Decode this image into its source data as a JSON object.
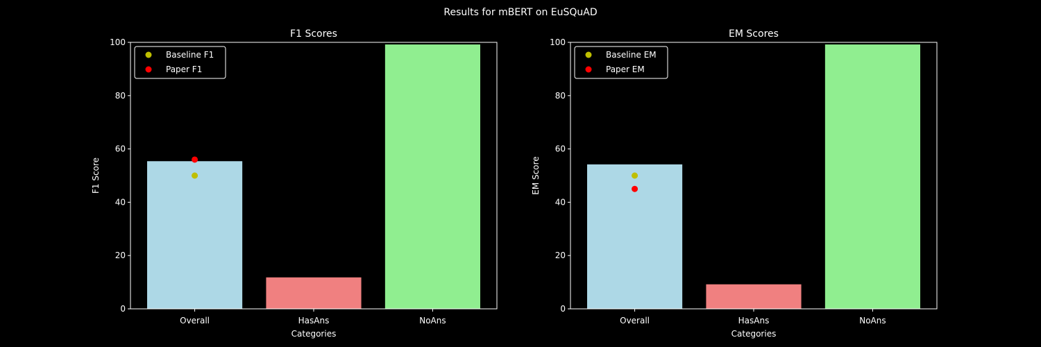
{
  "figure": {
    "suptitle": "Results for mBERT on EuSQuAD",
    "background": "#000000",
    "foreground": "#ffffff"
  },
  "chart_data": [
    {
      "type": "bar",
      "title": "F1 Scores",
      "xlabel": "Categories",
      "ylabel": "F1 Score",
      "ylim": [
        0,
        100
      ],
      "yticks": [
        0,
        20,
        40,
        60,
        80,
        100
      ],
      "grid": false,
      "legend_placement": "top-left",
      "categories": [
        "Overall",
        "HasAns",
        "NoAns"
      ],
      "values": [
        55.4,
        11.8,
        99.2
      ],
      "bar_colors": [
        "#add8e6",
        "#f08080",
        "#90ee90"
      ],
      "markers": [
        {
          "name": "Baseline F1",
          "category": "Overall",
          "value": 50.0,
          "color": "#bfbf00"
        },
        {
          "name": "Paper F1",
          "category": "Overall",
          "value": 56.0,
          "color": "#ff0000"
        }
      ]
    },
    {
      "type": "bar",
      "title": "EM Scores",
      "xlabel": "Categories",
      "ylabel": "EM Score",
      "ylim": [
        0,
        100
      ],
      "yticks": [
        0,
        20,
        40,
        60,
        80,
        100
      ],
      "grid": false,
      "legend_placement": "top-left",
      "categories": [
        "Overall",
        "HasAns",
        "NoAns"
      ],
      "values": [
        54.2,
        9.2,
        99.2
      ],
      "bar_colors": [
        "#add8e6",
        "#f08080",
        "#90ee90"
      ],
      "markers": [
        {
          "name": "Baseline EM",
          "category": "Overall",
          "value": 50.0,
          "color": "#bfbf00"
        },
        {
          "name": "Paper EM",
          "category": "Overall",
          "value": 45.0,
          "color": "#ff0000"
        }
      ]
    }
  ]
}
